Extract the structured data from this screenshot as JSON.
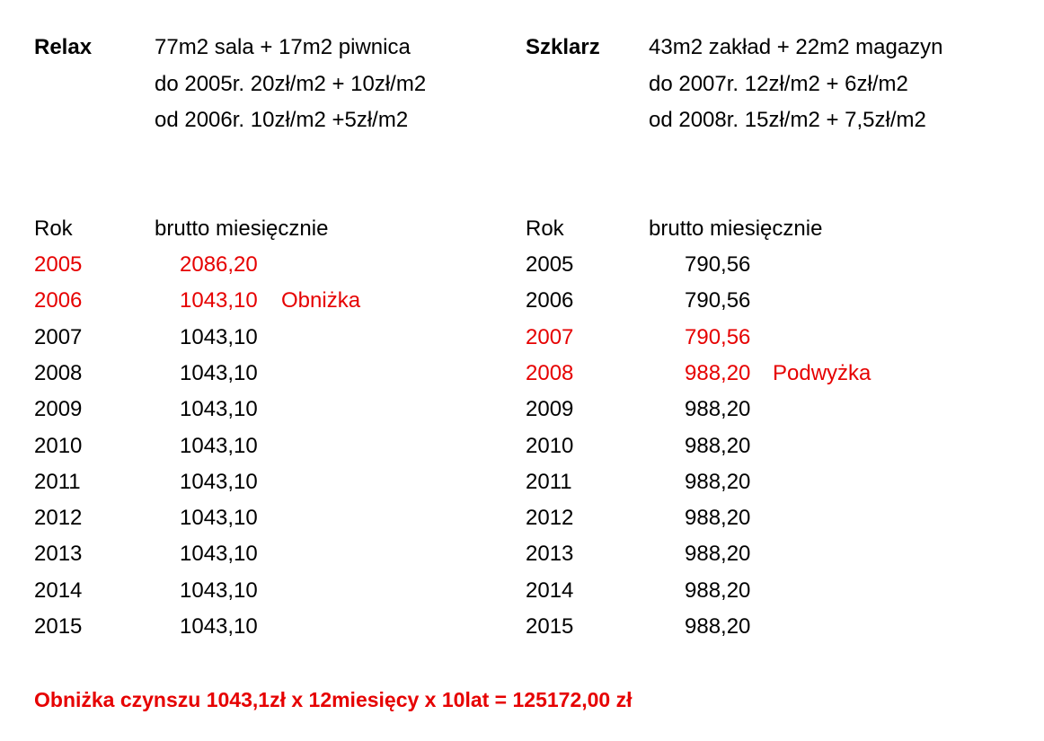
{
  "accent_color": "#e60000",
  "relax": {
    "name": "Relax",
    "lines": [
      "77m2 sala + 17m2 piwnica",
      "do 2005r. 20zł/m2 + 10zł/m2",
      "od 2006r. 10zł/m2 +5zł/m2"
    ],
    "col_year": "Rok",
    "col_value": "brutto miesięcznie",
    "rows": [
      {
        "year": "2005",
        "value": "2086,20",
        "note": "",
        "highlight": true
      },
      {
        "year": "2006",
        "value": "1043,10",
        "note": "Obniżka",
        "highlight": true
      },
      {
        "year": "2007",
        "value": "1043,10",
        "note": "",
        "highlight": false
      },
      {
        "year": "2008",
        "value": "1043,10",
        "note": "",
        "highlight": false
      },
      {
        "year": "2009",
        "value": "1043,10",
        "note": "",
        "highlight": false
      },
      {
        "year": "2010",
        "value": "1043,10",
        "note": "",
        "highlight": false
      },
      {
        "year": "2011",
        "value": "1043,10",
        "note": "",
        "highlight": false
      },
      {
        "year": "2012",
        "value": "1043,10",
        "note": "",
        "highlight": false
      },
      {
        "year": "2013",
        "value": "1043,10",
        "note": "",
        "highlight": false
      },
      {
        "year": "2014",
        "value": "1043,10",
        "note": "",
        "highlight": false
      },
      {
        "year": "2015",
        "value": "1043,10",
        "note": "",
        "highlight": false
      }
    ]
  },
  "szklarz": {
    "name": "Szklarz",
    "lines": [
      "43m2 zakład + 22m2 magazyn",
      "do 2007r. 12zł/m2 + 6zł/m2",
      "od 2008r. 15zł/m2 + 7,5zł/m2"
    ],
    "col_year": "Rok",
    "col_value": "brutto miesięcznie",
    "rows": [
      {
        "year": "2005",
        "value": "790,56",
        "note": "",
        "highlight": false
      },
      {
        "year": "2006",
        "value": "790,56",
        "note": "",
        "highlight": false
      },
      {
        "year": "2007",
        "value": "790,56",
        "note": "",
        "highlight": true
      },
      {
        "year": "2008",
        "value": "988,20",
        "note": "Podwyżka",
        "highlight": true
      },
      {
        "year": "2009",
        "value": "988,20",
        "note": "",
        "highlight": false
      },
      {
        "year": "2010",
        "value": "988,20",
        "note": "",
        "highlight": false
      },
      {
        "year": "2011",
        "value": "988,20",
        "note": "",
        "highlight": false
      },
      {
        "year": "2012",
        "value": "988,20",
        "note": "",
        "highlight": false
      },
      {
        "year": "2013",
        "value": "988,20",
        "note": "",
        "highlight": false
      },
      {
        "year": "2014",
        "value": "988,20",
        "note": "",
        "highlight": false
      },
      {
        "year": "2015",
        "value": "988,20",
        "note": "",
        "highlight": false
      }
    ]
  },
  "summary": "Obniżka czynszu  1043,1zł x 12miesięcy x 10lat = 125172,00 zł"
}
